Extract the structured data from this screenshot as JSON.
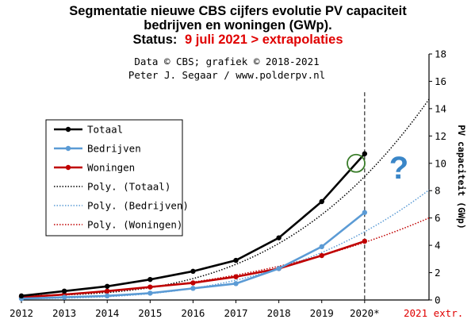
{
  "header": {
    "title_line1": "Segmentatie nieuwe CBS cijfers evolutie PV capaciteit",
    "title_line2": "bedrijven en woningen (GWp).",
    "status_label": "Status:",
    "status_value": "9 juli 2021 > extrapolaties"
  },
  "credits": {
    "line1": "Data © CBS; grafiek © 2018-2021",
    "line2": "Peter J. Segaar / www.polderpv.nl"
  },
  "annotation": {
    "question_mark": "?"
  },
  "chart_data": {
    "type": "line",
    "title": "Segmentatie nieuwe CBS cijfers evolutie PV capaciteit bedrijven en woningen (GWp).",
    "subtitle": "Status: 9 juli 2021 > extrapolaties",
    "ylabel": "PV capaciteit (GWp)",
    "ylim": [
      0,
      18
    ],
    "yticks": [
      "0",
      "2",
      "4",
      "6",
      "8",
      "10",
      "12",
      "14",
      "16",
      "18"
    ],
    "xlim": [
      2012,
      2021.5
    ],
    "x": [
      2012,
      2013,
      2014,
      2015,
      2016,
      2017,
      2018,
      2019,
      2020
    ],
    "xtick_labels": [
      "2012",
      "2013",
      "2014",
      "2015",
      "2016",
      "2017",
      "2018",
      "2019",
      "2020*"
    ],
    "x_extra_label": "2021 extr.",
    "grid": false,
    "legend_position": "left",
    "colors": {
      "totaal": "#000000",
      "bedrijven": "#5b9bd5",
      "woningen": "#c00000",
      "extra_label": "#e00000",
      "question": "#3a86c8",
      "circle": "#3a7d2a"
    },
    "series": [
      {
        "name": "Totaal",
        "values": [
          0.3,
          0.65,
          1.0,
          1.5,
          2.1,
          2.9,
          4.55,
          7.2,
          10.7
        ]
      },
      {
        "name": "Bedrijven",
        "values": [
          0.1,
          0.2,
          0.3,
          0.5,
          0.85,
          1.2,
          2.3,
          3.9,
          6.4
        ]
      },
      {
        "name": "Woningen",
        "values": [
          0.2,
          0.4,
          0.65,
          0.95,
          1.25,
          1.7,
          2.3,
          3.25,
          4.3
        ]
      }
    ],
    "polynomial_trends": [
      {
        "name": "Poly. (Totaal)",
        "coeffs": [
          0.305,
          0.051,
          0.002,
          0.016
        ]
      },
      {
        "name": "Poly. (Bedrijven)",
        "coeffs": [
          0.1,
          0.02,
          0.01,
          0.008
        ]
      },
      {
        "name": "Poly. (Woningen)",
        "coeffs": [
          0.2,
          0.15,
          0.02,
          0.003
        ]
      }
    ],
    "reference_line_x": 2020,
    "highlight_circle_x": 2019.8,
    "highlight_circle_y": 10.0
  }
}
